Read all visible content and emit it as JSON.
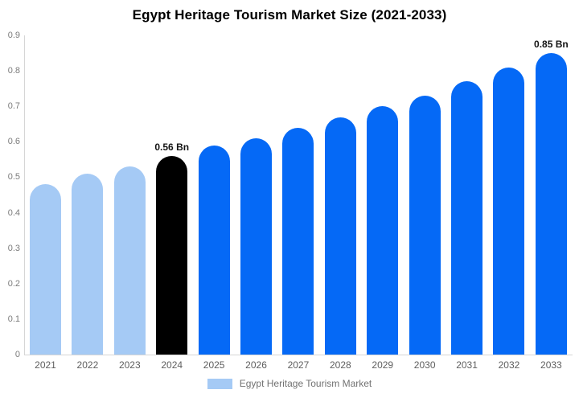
{
  "title": "Egypt Heritage Tourism Market Size (2021-2033)",
  "chart_data": {
    "type": "bar",
    "title": "Egypt Heritage Tourism Market Size (2021-2033)",
    "categories": [
      "2021",
      "2022",
      "2023",
      "2024",
      "2025",
      "2026",
      "2027",
      "2028",
      "2029",
      "2030",
      "2031",
      "2032",
      "2033"
    ],
    "values": [
      0.48,
      0.51,
      0.53,
      0.56,
      0.59,
      0.61,
      0.64,
      0.67,
      0.7,
      0.73,
      0.77,
      0.81,
      0.85
    ],
    "unit": "Bn",
    "series_name": "Egypt Heritage Tourism Market",
    "ylim": [
      0,
      0.9
    ],
    "yticks": [
      {
        "value": 0.0,
        "label": "0"
      },
      {
        "value": 0.1,
        "label": "0.1"
      },
      {
        "value": 0.2,
        "label": "0.2"
      },
      {
        "value": 0.3,
        "label": "0.3"
      },
      {
        "value": 0.4,
        "label": "0.4"
      },
      {
        "value": 0.5,
        "label": "0.5"
      },
      {
        "value": 0.6,
        "label": "0.6"
      },
      {
        "value": 0.7,
        "label": "0.7"
      },
      {
        "value": 0.8,
        "label": "0.8"
      },
      {
        "value": 0.9,
        "label": "0.9"
      }
    ],
    "bar_roles": [
      "historical",
      "historical",
      "historical",
      "current",
      "forecast",
      "forecast",
      "forecast",
      "forecast",
      "forecast",
      "forecast",
      "forecast",
      "forecast",
      "forecast"
    ],
    "palette": {
      "historical": "#a5caf5",
      "current": "#000000",
      "forecast": "#0569f6"
    },
    "annotations": [
      {
        "category": "2024",
        "text": "0.56 Bn"
      },
      {
        "category": "2033",
        "text": "0.85 Bn"
      }
    ],
    "grid": false,
    "legend_position": "bottom"
  },
  "legend": {
    "label": "Egypt Heritage Tourism Market",
    "swatch_color": "#a5caf5"
  },
  "axis": {
    "line_color": "#d6d6d6",
    "y_tick_color": "#7b7b7b",
    "x_tick_color": "#5e5e5e"
  }
}
